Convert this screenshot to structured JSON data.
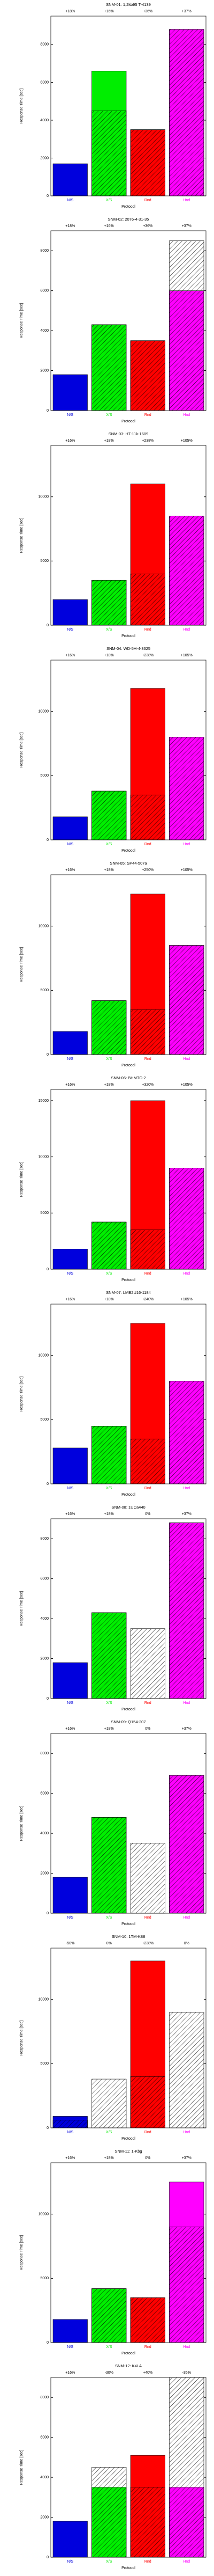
{
  "chart_data": [
    {
      "type": "bar",
      "title": "SNM-01: 1,2kb95 T-4139",
      "categories": [
        "N/S",
        "X/S",
        "Rnd",
        "Hnd"
      ],
      "colors": [
        "#0000dd",
        "#00ee00",
        "#ff0000",
        "#ff00ff"
      ],
      "values": [
        1700,
        6600,
        3500,
        8800
      ],
      "hatched": [
        0,
        4500,
        3500,
        8800
      ],
      "top_labels": [
        "+18%",
        "+16%",
        "+36%",
        "+37%"
      ],
      "ylim": [
        0,
        9500
      ],
      "yticks": [
        0,
        2000,
        4000,
        6000,
        8000
      ],
      "ylabel": "Response Time [sec]",
      "xlabel": "Protocol"
    },
    {
      "type": "bar",
      "title": "SNM-02: 2076-4-31-35",
      "categories": [
        "N/S",
        "X/S",
        "Rnd",
        "Hnd"
      ],
      "colors": [
        "#0000dd",
        "#00ee00",
        "#ff0000",
        "#ff00ff"
      ],
      "values": [
        1800,
        4300,
        3500,
        6000
      ],
      "hatched": [
        0,
        4300,
        3500,
        8500
      ],
      "top_labels": [
        "+18%",
        "+16%",
        "+36%",
        "+37%"
      ],
      "ylim": [
        0,
        9000
      ],
      "yticks": [
        0,
        2000,
        4000,
        6000,
        8000
      ],
      "ylabel": "Response Time [sec]",
      "xlabel": "Protocol"
    },
    {
      "type": "bar",
      "title": "SNM-03: HT-11k-1609",
      "categories": [
        "N/S",
        "X/S",
        "Rnd",
        "Hnd"
      ],
      "colors": [
        "#0000dd",
        "#00ee00",
        "#ff0000",
        "#ff00ff"
      ],
      "values": [
        2000,
        3500,
        11000,
        8500
      ],
      "hatched": [
        0,
        3500,
        4000,
        8500
      ],
      "top_labels": [
        "+16%",
        "+18%",
        "+238%",
        "+105%"
      ],
      "ylim": [
        0,
        14000
      ],
      "yticks": [
        0,
        5000,
        10000
      ],
      "ylabel": "Response Time [sec]",
      "xlabel": "Protocol"
    },
    {
      "type": "bar",
      "title": "SNM-04: WD-5H-4-3325",
      "categories": [
        "N/S",
        "X/S",
        "Rnd",
        "Hnd"
      ],
      "colors": [
        "#0000dd",
        "#00ee00",
        "#ff0000",
        "#ff00ff"
      ],
      "values": [
        1800,
        3800,
        11800,
        8000
      ],
      "hatched": [
        0,
        3800,
        3500,
        8000
      ],
      "top_labels": [
        "+16%",
        "+18%",
        "+238%",
        "+105%"
      ],
      "ylim": [
        0,
        14000
      ],
      "yticks": [
        0,
        5000,
        10000
      ],
      "ylabel": "Response Time [sec]",
      "xlabel": "Protocol"
    },
    {
      "type": "bar",
      "title": "SNM-05: SP44-507a",
      "categories": [
        "N/S",
        "X/S",
        "Rnd",
        "Hnd"
      ],
      "colors": [
        "#0000dd",
        "#00ee00",
        "#ff0000",
        "#ff00ff"
      ],
      "values": [
        1800,
        4200,
        12500,
        8500
      ],
      "hatched": [
        0,
        4200,
        3500,
        8500
      ],
      "top_labels": [
        "+16%",
        "+18%",
        "+250%",
        "+105%"
      ],
      "ylim": [
        0,
        14000
      ],
      "yticks": [
        0,
        5000,
        10000
      ],
      "ylabel": "Response Time [sec]",
      "xlabel": "Protocol"
    },
    {
      "type": "bar",
      "title": "SNM-06: BHMTC-2",
      "categories": [
        "N/S",
        "X/S",
        "Rnd",
        "Hnd"
      ],
      "colors": [
        "#0000dd",
        "#00ee00",
        "#ff0000",
        "#ff00ff"
      ],
      "values": [
        1800,
        4200,
        15000,
        9000
      ],
      "hatched": [
        0,
        4200,
        3500,
        9000
      ],
      "top_labels": [
        "+16%",
        "+18%",
        "+320%",
        "+105%"
      ],
      "ylim": [
        0,
        16000
      ],
      "yticks": [
        0,
        5000,
        10000,
        15000
      ],
      "ylabel": "Response Time [sec]",
      "xlabel": "Protocol"
    },
    {
      "type": "bar",
      "title": "SNM-07: LMB2U16-1184",
      "categories": [
        "N/S",
        "X/S",
        "Rnd",
        "Hnd"
      ],
      "colors": [
        "#0000dd",
        "#00ee00",
        "#ff0000",
        "#ff00ff"
      ],
      "values": [
        2800,
        4500,
        12500,
        8000
      ],
      "hatched": [
        0,
        4500,
        3500,
        8000
      ],
      "top_labels": [
        "+16%",
        "+18%",
        "+240%",
        "+105%"
      ],
      "ylim": [
        0,
        14000
      ],
      "yticks": [
        0,
        5000,
        10000
      ],
      "ylabel": "Response Time [sec]",
      "xlabel": "Protocol"
    },
    {
      "type": "bar",
      "title": "SNM-08: 1UCa440",
      "categories": [
        "N/S",
        "X/S",
        "Rnd",
        "Hnd"
      ],
      "colors": [
        "#0000dd",
        "#00ee00",
        "#ff0000",
        "#ff00ff"
      ],
      "values": [
        1800,
        4300,
        0,
        8800
      ],
      "hatched": [
        0,
        4300,
        3500,
        8800
      ],
      "top_labels": [
        "+16%",
        "+18%",
        "0%",
        "+37%"
      ],
      "ylim": [
        0,
        9000
      ],
      "yticks": [
        0,
        2000,
        4000,
        6000,
        8000
      ],
      "ylabel": "Response Time [sec]",
      "xlabel": "Protocol"
    },
    {
      "type": "bar",
      "title": "SNM-09: Q154-207",
      "categories": [
        "N/S",
        "X/S",
        "Rnd",
        "Hnd"
      ],
      "colors": [
        "#0000dd",
        "#00ee00",
        "#ff0000",
        "#ff00ff"
      ],
      "values": [
        1800,
        4800,
        0,
        6900
      ],
      "hatched": [
        0,
        4800,
        3500,
        6900
      ],
      "top_labels": [
        "+16%",
        "+18%",
        "0%",
        "+37%"
      ],
      "ylim": [
        0,
        9000
      ],
      "yticks": [
        0,
        2000,
        4000,
        6000,
        8000
      ],
      "ylabel": "Response Time [sec]",
      "xlabel": "Protocol"
    },
    {
      "type": "bar",
      "title": "SNM-10: 1TM-K88",
      "categories": [
        "N/S",
        "X/S",
        "Rnd",
        "Hnd"
      ],
      "colors": [
        "#0000dd",
        "#00ee00",
        "#ff0000",
        "#ff00ff"
      ],
      "values": [
        900,
        0,
        13000,
        0
      ],
      "hatched": [
        600,
        3800,
        4000,
        9000
      ],
      "top_labels": [
        "-50%",
        "0%",
        "+238%",
        "0%"
      ],
      "ylim": [
        0,
        14000
      ],
      "yticks": [
        0,
        5000,
        10000
      ],
      "ylabel": "Response Time [sec]",
      "xlabel": "Protocol"
    },
    {
      "type": "bar",
      "title": "SNM-11: 1-Kbg",
      "categories": [
        "N/S",
        "X/S",
        "Rnd",
        "Hnd"
      ],
      "colors": [
        "#0000dd",
        "#00ee00",
        "#ff0000",
        "#ff00ff"
      ],
      "values": [
        1800,
        4200,
        3500,
        12500
      ],
      "hatched": [
        0,
        4200,
        3500,
        9000
      ],
      "top_labels": [
        "+16%",
        "+18%",
        "0%",
        "+37%"
      ],
      "ylim": [
        0,
        14000
      ],
      "yticks": [
        0,
        5000,
        10000
      ],
      "ylabel": "Response Time [sec]",
      "xlabel": "Protocol"
    },
    {
      "type": "bar",
      "title": "SNM-12: K4LA",
      "categories": [
        "N/S",
        "X/S",
        "Rnd",
        "Hnd"
      ],
      "colors": [
        "#0000dd",
        "#00ee00",
        "#ff0000",
        "#ff00ff"
      ],
      "values": [
        1800,
        3500,
        5100,
        3500
      ],
      "hatched": [
        0,
        4500,
        3500,
        9000
      ],
      "top_labels": [
        "+16%",
        "-30%",
        "+40%",
        "-35%"
      ],
      "ylim": [
        0,
        9000
      ],
      "yticks": [
        0,
        2000,
        4000,
        6000,
        8000
      ],
      "ylabel": "Response Time [sec]",
      "xlabel": "Protocol"
    }
  ]
}
